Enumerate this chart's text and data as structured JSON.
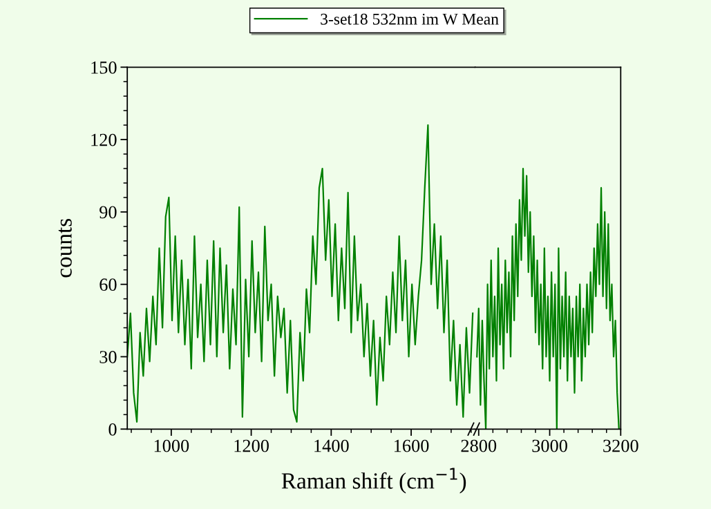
{
  "chart_data": [
    {
      "type": "line",
      "xlabel": "Raman shift (cm$^{−1}$)",
      "ylabel": "counts",
      "legend": "top",
      "grid": false,
      "marker": "none",
      "line_style": "solid",
      "xlim": [
        890,
        1760
      ],
      "xticks": [
        1000,
        1200,
        1400,
        1600
      ],
      "ylim": [
        0,
        150
      ],
      "yticks": [
        0,
        30,
        60,
        90,
        120,
        150
      ],
      "series": [
        {
          "name": "3-set18 532nm im W Mean",
          "color": "#008000",
          "x": [
            890,
            898,
            906,
            914,
            922,
            930,
            938,
            946,
            954,
            962,
            970,
            978,
            986,
            994,
            1002,
            1010,
            1018,
            1026,
            1034,
            1042,
            1050,
            1058,
            1066,
            1074,
            1082,
            1090,
            1098,
            1106,
            1114,
            1122,
            1130,
            1138,
            1146,
            1154,
            1162,
            1170,
            1178,
            1186,
            1194,
            1202,
            1210,
            1218,
            1226,
            1234,
            1242,
            1250,
            1258,
            1266,
            1274,
            1282,
            1290,
            1298,
            1306,
            1314,
            1322,
            1330,
            1338,
            1346,
            1354,
            1362,
            1370,
            1378,
            1386,
            1394,
            1402,
            1410,
            1418,
            1426,
            1434,
            1442,
            1450,
            1458,
            1466,
            1474,
            1482,
            1490,
            1498,
            1506,
            1514,
            1522,
            1530,
            1538,
            1546,
            1554,
            1562,
            1570,
            1578,
            1586,
            1594,
            1602,
            1610,
            1618,
            1626,
            1634,
            1642,
            1650,
            1658,
            1666,
            1674,
            1682,
            1690,
            1698,
            1706,
            1714,
            1722,
            1730,
            1738,
            1746,
            1754
          ],
          "values": [
            30,
            48,
            15,
            3,
            40,
            22,
            50,
            28,
            55,
            35,
            75,
            42,
            88,
            96,
            45,
            80,
            40,
            70,
            35,
            62,
            25,
            80,
            38,
            60,
            28,
            70,
            35,
            78,
            30,
            75,
            40,
            68,
            25,
            58,
            35,
            92,
            5,
            62,
            30,
            78,
            40,
            65,
            28,
            84,
            45,
            60,
            22,
            55,
            38,
            50,
            15,
            45,
            8,
            3,
            40,
            20,
            58,
            40,
            80,
            60,
            100,
            108,
            70,
            95,
            55,
            85,
            45,
            75,
            50,
            98,
            40,
            80,
            45,
            60,
            30,
            52,
            22,
            45,
            10,
            38,
            20,
            55,
            35,
            65,
            40,
            80,
            45,
            70,
            30,
            60,
            35,
            55,
            70,
            100,
            126,
            60,
            85,
            50,
            80,
            40,
            70,
            20,
            45,
            10,
            35,
            5,
            42,
            15,
            48
          ]
        }
      ]
    },
    {
      "type": "line",
      "grid": false,
      "marker": "none",
      "line_style": "solid",
      "tick_labels": "x",
      "xlim": [
        2790,
        3200
      ],
      "xticks": [
        2800,
        3000,
        3200
      ],
      "ylim": [
        0,
        150
      ],
      "yticks": [
        0,
        30,
        60,
        90,
        120,
        150
      ],
      "series": [
        {
          "color": "#008000",
          "x": [
            2795,
            2800,
            2805,
            2810,
            2815,
            2820,
            2825,
            2830,
            2835,
            2840,
            2845,
            2850,
            2855,
            2860,
            2865,
            2870,
            2875,
            2880,
            2885,
            2890,
            2895,
            2900,
            2905,
            2910,
            2915,
            2920,
            2925,
            2930,
            2935,
            2940,
            2945,
            2950,
            2955,
            2960,
            2965,
            2970,
            2975,
            2980,
            2985,
            2990,
            2995,
            3000,
            3005,
            3010,
            3015,
            3020,
            3025,
            3030,
            3035,
            3040,
            3045,
            3050,
            3055,
            3060,
            3065,
            3070,
            3075,
            3080,
            3085,
            3090,
            3095,
            3100,
            3105,
            3110,
            3115,
            3120,
            3125,
            3130,
            3135,
            3140,
            3145,
            3150,
            3155,
            3160,
            3165,
            3170,
            3175,
            3180,
            3185,
            3190,
            3195
          ],
          "values": [
            30,
            50,
            10,
            45,
            20,
            0,
            60,
            25,
            70,
            30,
            55,
            20,
            75,
            35,
            60,
            25,
            70,
            40,
            65,
            30,
            80,
            45,
            85,
            55,
            95,
            70,
            108,
            80,
            105,
            65,
            90,
            55,
            80,
            40,
            70,
            35,
            60,
            25,
            75,
            30,
            55,
            20,
            65,
            30,
            60,
            0,
            75,
            25,
            55,
            30,
            65,
            20,
            55,
            30,
            50,
            15,
            55,
            30,
            60,
            20,
            50,
            30,
            60,
            35,
            65,
            40,
            75,
            55,
            85,
            60,
            100,
            55,
            90,
            50,
            85,
            45,
            60,
            30,
            45,
            15,
            0
          ]
        }
      ]
    }
  ]
}
